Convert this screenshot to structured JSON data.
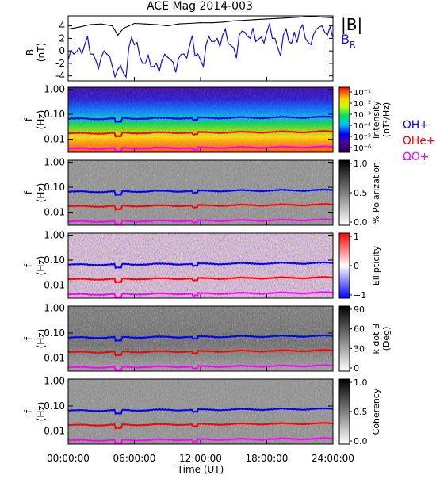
{
  "title": "ACE Mag 2014-003",
  "xlabel": "Time (UT)",
  "xticks": [
    "00:00:00",
    "06:00:00",
    "12:00:00",
    "18:00:00",
    "24:00:00"
  ],
  "colors": {
    "bmag": "#000000",
    "br": "#1010e0",
    "h_gyro": "#0000ff",
    "he_gyro": "#ff0000",
    "o_gyro": "#ff00ff"
  },
  "chart_data": [
    {
      "type": "line",
      "panel": "magnetic-field",
      "ylabel_top": "B",
      "ylabel_bottom": "(nT)",
      "yticks": [
        "4",
        "2",
        "0",
        "-2",
        "-4"
      ],
      "ylim": [
        -4.8,
        5.6
      ],
      "xlim": [
        0,
        24
      ],
      "series": [
        {
          "name": "|B|",
          "color": "#000000",
          "x": [
            0,
            1,
            2,
            3,
            4,
            4.5,
            5,
            5.5,
            6,
            7,
            8,
            9,
            10,
            11,
            12,
            13,
            14,
            15,
            16,
            17,
            18,
            19,
            20,
            21,
            22,
            23,
            24
          ],
          "y": [
            3.5,
            3.8,
            4.2,
            4.3,
            4.0,
            2.5,
            3.6,
            4.0,
            4.4,
            4.3,
            4.2,
            4.0,
            4.3,
            4.4,
            4.5,
            4.5,
            4.6,
            4.8,
            4.9,
            5.0,
            5.1,
            5.2,
            5.3,
            5.4,
            5.5,
            5.4,
            5.3
          ]
        },
        {
          "name": "B_R",
          "color": "#1010e0",
          "x": [
            0,
            0.5,
            1,
            1.5,
            2,
            2.5,
            3,
            3.5,
            4,
            4.5,
            5,
            5.5,
            6,
            6.5,
            7,
            7.5,
            8,
            8.5,
            9,
            9.5,
            10,
            10.5,
            11,
            11.5,
            12,
            12.5,
            13,
            13.5,
            14,
            14.5,
            15,
            15.5,
            16,
            16.5,
            17,
            17.5,
            18,
            18.5,
            19,
            19.5,
            20,
            20.5,
            21,
            21.5,
            22,
            22.5,
            23,
            23.5,
            24
          ],
          "y": [
            -1.5,
            -0.5,
            0.5,
            1.0,
            -0.5,
            -1.5,
            -1.0,
            -0.5,
            -2.5,
            -3.0,
            -3.5,
            0.5,
            1.0,
            -1.0,
            -2.0,
            -2.5,
            -2.0,
            -1.5,
            -1.0,
            -1.8,
            -1.2,
            -0.5,
            0.8,
            -0.8,
            -1.5,
            1.0,
            1.5,
            2.0,
            2.5,
            1.2,
            0.5,
            2.5,
            3.0,
            2.0,
            1.5,
            2.2,
            3.0,
            2.0,
            0.5,
            2.5,
            1.5,
            3.0,
            3.5,
            2.0,
            1.0,
            3.5,
            4.0,
            2.5,
            2.0
          ]
        }
      ]
    },
    {
      "type": "heatmap",
      "panel": "intensity",
      "ylabel_top": "f",
      "ylabel_bottom": "(Hz)",
      "yscale": "log",
      "ylim": [
        0.003,
        1.2
      ],
      "yticks": [
        "1.00",
        "0.10",
        "0.01"
      ],
      "colorbar_label": [
        "Intensity",
        "(nT²/Hz)"
      ],
      "colorbar_ticks": [
        "10⁻¹",
        "10⁻²",
        "10⁻³",
        "10⁻⁴",
        "10⁻⁵",
        "10⁻⁶"
      ],
      "colorscale": "rainbow",
      "gyro_labels": [
        {
          "text": "ΩH+",
          "color": "#0000ff"
        },
        {
          "text": "ΩHe+",
          "color": "#ff0000"
        },
        {
          "text": "ΩO+",
          "color": "#ff00ff"
        }
      ]
    },
    {
      "type": "heatmap",
      "panel": "polarization",
      "ylabel_top": "f",
      "ylabel_bottom": "(Hz)",
      "yscale": "log",
      "yticks": [
        "1.00",
        "0.10",
        "0.01"
      ],
      "colorbar_label": [
        "% Polarization"
      ],
      "colorbar_ticks": [
        "1.0",
        "0.5",
        "0.0"
      ],
      "colorscale": "gray"
    },
    {
      "type": "heatmap",
      "panel": "ellipticity",
      "ylabel_top": "f",
      "ylabel_bottom": "(Hz)",
      "yscale": "log",
      "yticks": [
        "1.00",
        "0.10",
        "0.01"
      ],
      "colorbar_label": [
        "Ellipticity"
      ],
      "colorbar_ticks": [
        "1",
        "0",
        "−1"
      ],
      "colorscale": "bwr"
    },
    {
      "type": "heatmap",
      "panel": "kdotb",
      "ylabel_top": "f",
      "ylabel_bottom": "(Hz)",
      "yscale": "log",
      "yticks": [
        "1.00",
        "0.10",
        "0.01"
      ],
      "colorbar_label": [
        "k dot B",
        "(Deg)"
      ],
      "colorbar_ticks": [
        "90",
        "60",
        "30",
        "0"
      ],
      "colorscale": "gray"
    },
    {
      "type": "heatmap",
      "panel": "coherency",
      "ylabel_top": "f",
      "ylabel_bottom": "(Hz)",
      "yscale": "log",
      "yticks": [
        "1.00",
        "0.10",
        "0.01"
      ],
      "colorbar_label": [
        "Coherency"
      ],
      "colorbar_ticks": [
        "1.0",
        "0.5",
        "0.0"
      ],
      "colorscale": "gray"
    }
  ],
  "legend": {
    "bmag": "|B|",
    "br_main": "B",
    "br_sub": "R"
  }
}
